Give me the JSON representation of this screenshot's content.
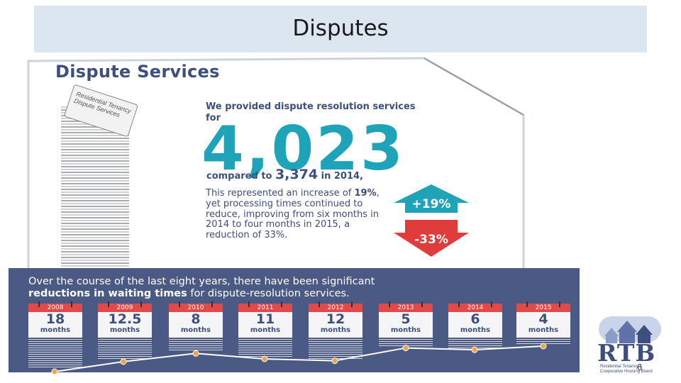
{
  "slide": {
    "title": "Disputes",
    "page_number": "6"
  },
  "infographic": {
    "heading": "Dispute Services",
    "scroll_label": "Residential Tenancy Dispute Services",
    "lead": "We provided dispute resolution services for",
    "total": "4,023",
    "compare_prefix": "compared to",
    "compare_value": "3,374",
    "compare_suffix": "in 2014,",
    "para_1": "This represented an increase of",
    "para_pct": "19%",
    "para_2": ", yet processing times continued to reduce, improving from six months in 2014 to four months in 2015, a reduction of 33%.",
    "increase_badge": "+19%",
    "decrease_badge": "-33%",
    "up_color": "#1fa3b8",
    "down_color": "#e03c3c"
  },
  "banner": {
    "line_1": "Over the course of the last eight years, there have been significant",
    "line_2_bold": "reductions in waiting times",
    "line_2_rest": " for dispute-resolution services.",
    "bg_color": "#4b5a85"
  },
  "calendars": [
    {
      "year": "2008",
      "value": "18",
      "unit": "months"
    },
    {
      "year": "2009",
      "value": "12.5",
      "unit": "months"
    },
    {
      "year": "2010",
      "value": "8",
      "unit": "months"
    },
    {
      "year": "2011",
      "value": "11",
      "unit": "months"
    },
    {
      "year": "2012",
      "value": "12",
      "unit": "months"
    },
    {
      "year": "2013",
      "value": "5",
      "unit": "months"
    },
    {
      "year": "2014",
      "value": "6",
      "unit": "months"
    },
    {
      "year": "2015",
      "value": "4",
      "unit": "months"
    }
  ],
  "logo": {
    "mark": "RTB",
    "subtitle": "Residential Tenancy & Cooperative Housing Board",
    "icon": "houses-icon"
  }
}
